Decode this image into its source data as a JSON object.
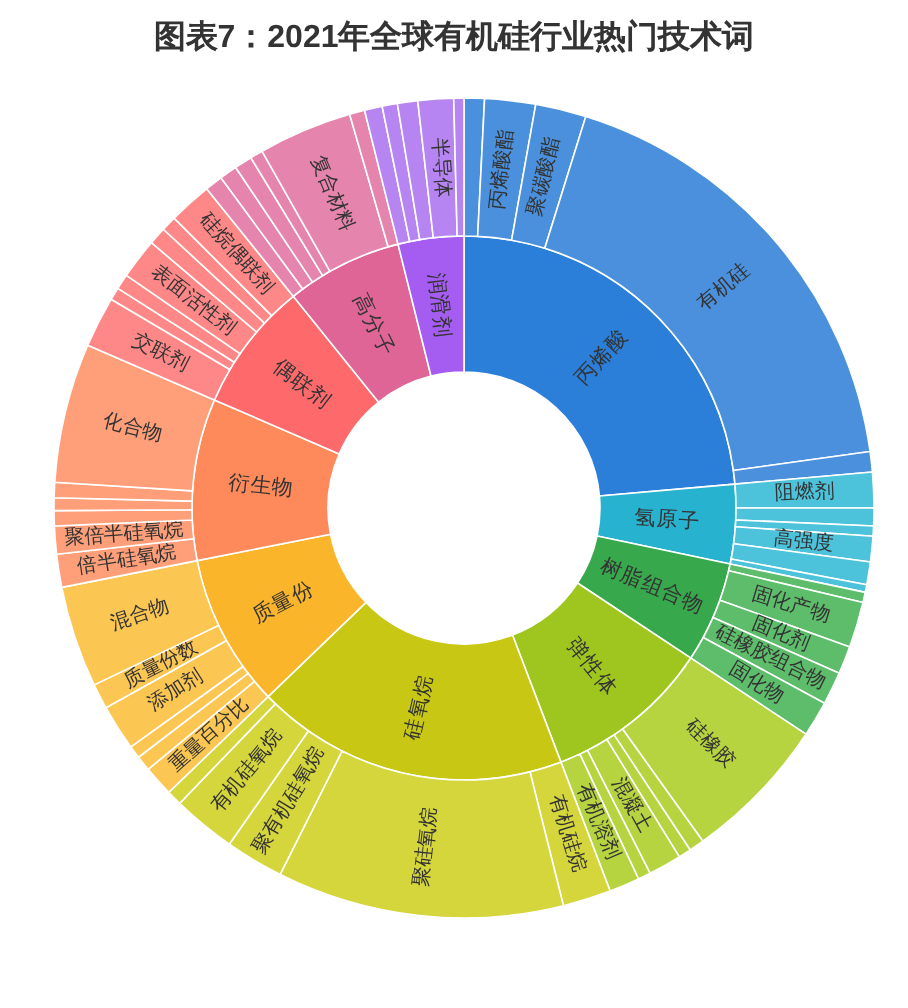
{
  "chart_data": [
    {
      "type": "donut",
      "title": "图表7：2021年全球有机硅行业热门技术词",
      "categories": [
        "丙烯酸",
        "氢原子",
        "树脂组合物",
        "弹性体",
        "硅氧烷",
        "质量份",
        "衍生物",
        "偶联剂",
        "高分子",
        "润滑剂"
      ],
      "values": [
        23.6,
        4.7,
        6.0,
        9.9,
        18.6,
        9.1,
        9.6,
        7.7,
        6.9,
        3.9
      ],
      "colors": [
        "#2b7fd9",
        "#27b2cf",
        "#37a94c",
        "#9fc51f",
        "#c8c814",
        "#fbb52a",
        "#fe8a5b",
        "#fe6a6b",
        "#de6596",
        "#a55cf0"
      ]
    },
    {
      "type": "donut",
      "categories": [
        null,
        "丙烯酸酯",
        "聚碳酸酯",
        "有机硅",
        null,
        "阻燃剂",
        null,
        null,
        "高强度",
        null,
        null,
        null,
        "固化产物",
        "固化剂",
        "硅橡胶组合物",
        "固化物",
        "硅橡胶",
        null,
        null,
        "混凝土",
        null,
        "有机溶剂",
        "有机硅烷",
        "聚硅氧烷",
        "聚有机硅氧烷",
        "有机硅氧烷",
        null,
        "重量百分比",
        null,
        null,
        "添加剂",
        "质量份数",
        "混合物",
        "倍半硅氧烷",
        "聚倍半硅氧烷",
        null,
        null,
        null,
        "化合物",
        "交联剂",
        null,
        null,
        "表面活性剂",
        null,
        null,
        "硅烷偶联剂",
        null,
        null,
        null,
        null,
        "复合材料",
        null,
        null,
        null,
        null,
        "半导体",
        null
      ],
      "values": [
        0.8,
        2.0,
        2.0,
        18.0,
        0.8,
        1.4,
        0.7,
        0.4,
        1.0,
        0.9,
        0.3,
        0.4,
        1.8,
        1.1,
        1.3,
        1.4,
        5.8,
        0.6,
        0.5,
        1.3,
        0.5,
        1.2,
        1.9,
        11.3,
        2.3,
        2.5,
        0.6,
        1.2,
        0.6,
        0.5,
        1.8,
        1.0,
        4.0,
        1.3,
        1.1,
        0.6,
        0.5,
        0.6,
        5.5,
        2.0,
        0.5,
        0.6,
        1.6,
        0.7,
        0.6,
        1.7,
        0.7,
        0.7,
        0.7,
        0.5,
        3.7,
        0.6,
        0.7,
        0.6,
        0.8,
        1.4,
        0.4
      ],
      "colors": [
        "#4a90dc",
        "#4a90dc",
        "#4a90dc",
        "#4a90dc",
        "#4a90dc",
        "#4cc3da",
        "#4cc3da",
        "#4cc3da",
        "#4cc3da",
        "#4cc3da",
        "#4cc3da",
        "#5dbd6b",
        "#5dbd6b",
        "#5dbd6b",
        "#5dbd6b",
        "#5dbd6b",
        "#b6d340",
        "#b6d340",
        "#b6d340",
        "#b6d340",
        "#b6d340",
        "#b6d340",
        "#d5d53c",
        "#d5d53c",
        "#d5d53c",
        "#d5d53c",
        "#d5d53c",
        "#fcc653",
        "#fcc653",
        "#fcc653",
        "#fcc653",
        "#fcc653",
        "#fcc653",
        "#fe9f79",
        "#fe9f79",
        "#fe9f79",
        "#fe9f79",
        "#fe9f79",
        "#fe9f79",
        "#fe8888",
        "#fe8888",
        "#fe8888",
        "#fe8888",
        "#fe8888",
        "#fe8888",
        "#fe8888",
        "#e585ae",
        "#e585ae",
        "#e585ae",
        "#e585ae",
        "#e585ae",
        "#e585ae",
        "#b685f2",
        "#b685f2",
        "#b685f2",
        "#b685f2",
        "#b685f2"
      ]
    }
  ]
}
